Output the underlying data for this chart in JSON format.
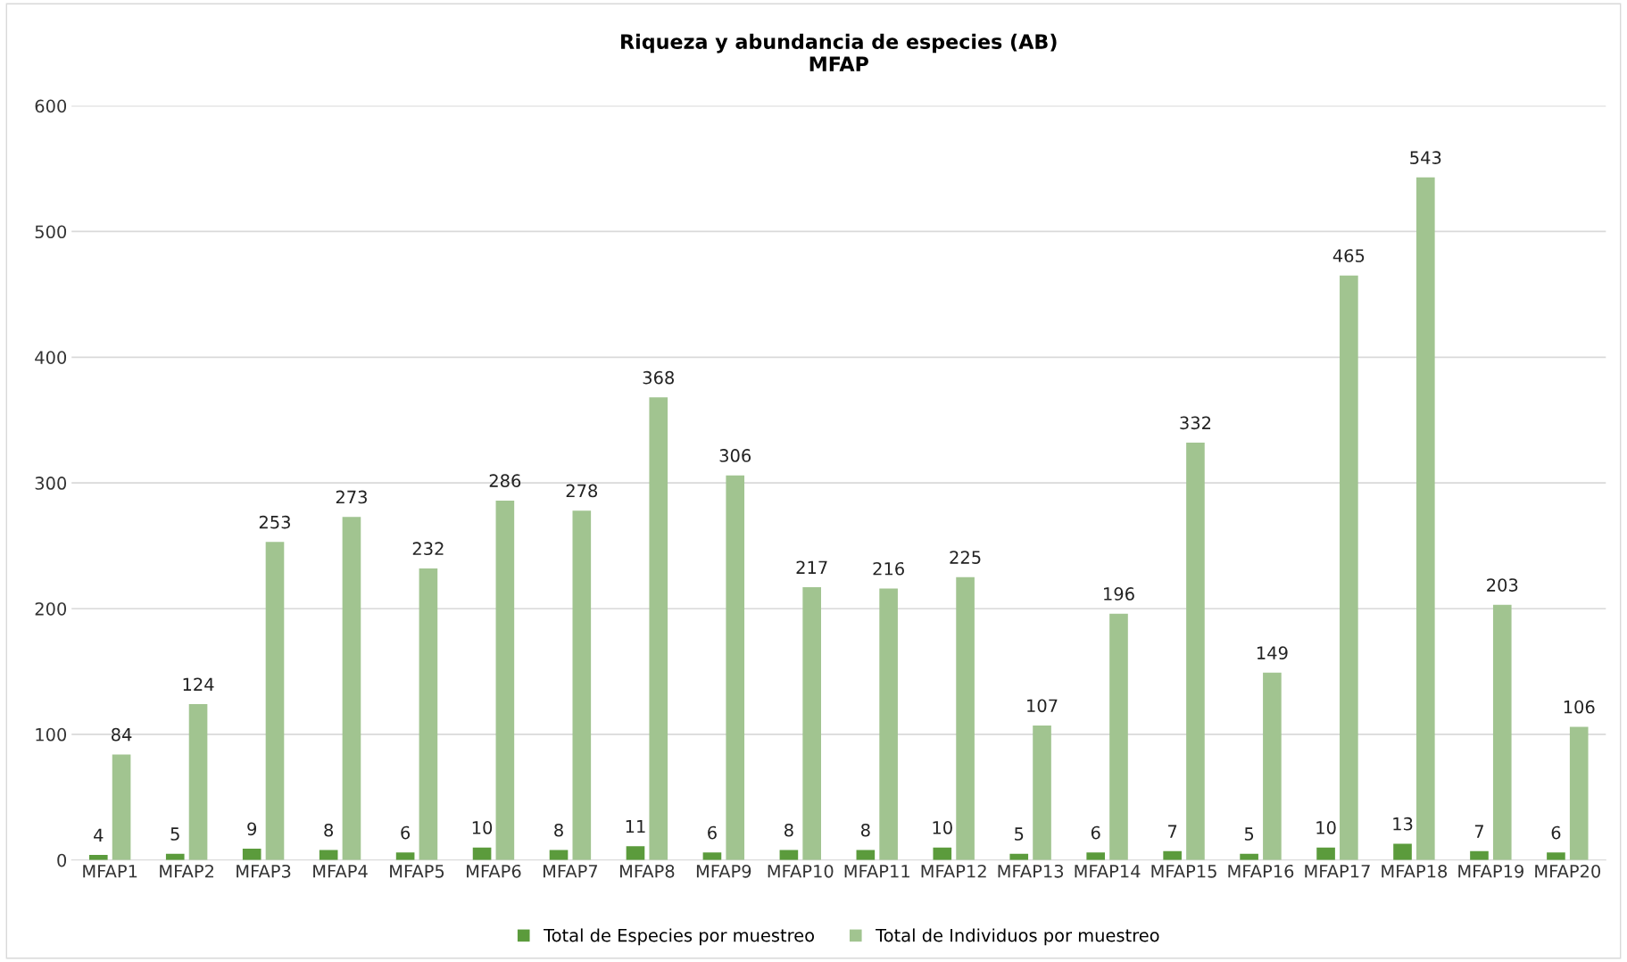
{
  "chart_data": {
    "type": "bar",
    "title": "Riqueza y abundancia de especies (AB)\nMFAP",
    "categories": [
      "MFAP1",
      "MFAP2",
      "MFAP3",
      "MFAP4",
      "MFAP5",
      "MFAP6",
      "MFAP7",
      "MFAP8",
      "MFAP9",
      "MFAP10",
      "MFAP11",
      "MFAP12",
      "MFAP13",
      "MFAP14",
      "MFAP15",
      "MFAP16",
      "MFAP17",
      "MFAP18",
      "MFAP19",
      "MFAP20"
    ],
    "series": [
      {
        "name": "Total de Especies por muestreo",
        "color": "#5b9b3c",
        "values": [
          4,
          5,
          9,
          8,
          6,
          10,
          8,
          11,
          6,
          8,
          8,
          10,
          5,
          6,
          7,
          5,
          10,
          13,
          7,
          6
        ]
      },
      {
        "name": "Total de Individuos por muestreo",
        "color": "#a1c490",
        "values": [
          84,
          124,
          253,
          273,
          232,
          286,
          278,
          368,
          306,
          217,
          216,
          225,
          107,
          196,
          332,
          149,
          465,
          543,
          203,
          106
        ]
      }
    ],
    "ylim": [
      0,
      600
    ],
    "yticks": [
      0,
      100,
      200,
      300,
      400,
      500,
      600
    ],
    "grid": "y",
    "legend": "bottom",
    "data_labels": true
  }
}
